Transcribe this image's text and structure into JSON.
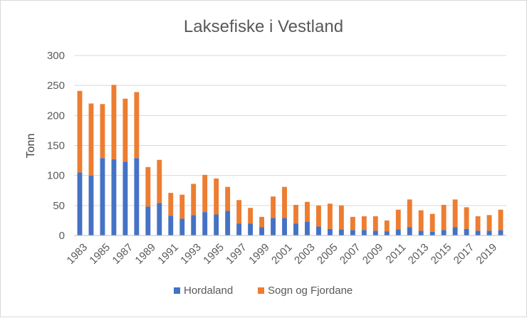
{
  "chart_data": {
    "type": "bar",
    "stacked": true,
    "title": "Laksefiske i Vestland",
    "xlabel": "",
    "ylabel": "Tonn",
    "ylim": [
      0,
      300
    ],
    "yticks": [
      0,
      50,
      100,
      150,
      200,
      250,
      300
    ],
    "grid": true,
    "legend_position": "bottom",
    "categories": [
      "1983",
      "1984",
      "1985",
      "1986",
      "1987",
      "1988",
      "1989",
      "1990",
      "1991",
      "1992",
      "1993",
      "1994",
      "1995",
      "1996",
      "1997",
      "1998",
      "1999",
      "2000",
      "2001",
      "2002",
      "2003",
      "2004",
      "2005",
      "2006",
      "2007",
      "2008",
      "2009",
      "2010",
      "2011",
      "2012",
      "2013",
      "2014",
      "2015",
      "2016",
      "2017",
      "2018",
      "2019",
      "2020"
    ],
    "xtick_labels": [
      "1983",
      "1985",
      "1987",
      "1989",
      "1991",
      "1993",
      "1995",
      "1997",
      "1999",
      "2001",
      "2003",
      "2005",
      "2007",
      "2009",
      "2011",
      "2013",
      "2015",
      "2017",
      "2019"
    ],
    "series": [
      {
        "name": "Hordaland",
        "color": "#4472C4",
        "values": [
          105,
          100,
          129,
          127,
          123,
          129,
          48,
          54,
          33,
          28,
          34,
          39,
          35,
          41,
          20,
          20,
          14,
          29,
          29,
          20,
          23,
          15,
          11,
          10,
          9,
          9,
          8,
          7,
          10,
          14,
          8,
          6,
          9,
          14,
          11,
          8,
          8,
          9
        ]
      },
      {
        "name": "Sogn og Fjordane",
        "color": "#ED7D31",
        "values": [
          136,
          120,
          90,
          124,
          105,
          110,
          66,
          72,
          38,
          40,
          52,
          62,
          60,
          40,
          39,
          26,
          17,
          36,
          52,
          31,
          33,
          35,
          42,
          40,
          22,
          23,
          24,
          18,
          33,
          46,
          34,
          30,
          42,
          46,
          36,
          24,
          26,
          34
        ]
      }
    ]
  }
}
